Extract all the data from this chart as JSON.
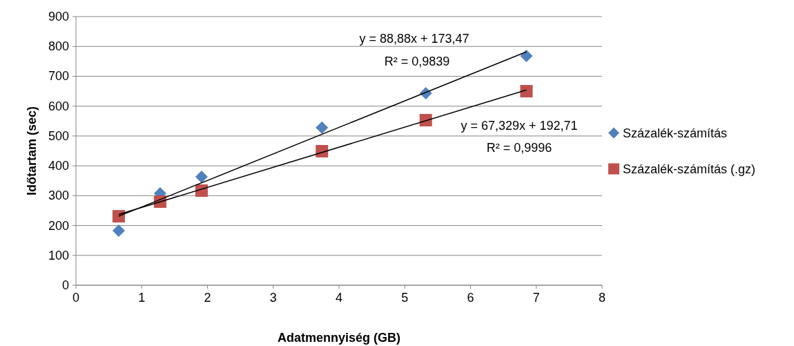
{
  "chart_data": {
    "type": "scatter",
    "xlabel": "Adatmennyiség (GB)",
    "ylabel": "Időtartam (sec)",
    "xlim": [
      0,
      8
    ],
    "xticks": [
      0,
      1,
      2,
      3,
      4,
      5,
      6,
      7,
      8
    ],
    "ylim": [
      0,
      900
    ],
    "yticks": [
      0,
      100,
      200,
      300,
      400,
      500,
      600,
      700,
      800,
      900
    ],
    "grid": "y",
    "legend": "right",
    "series": [
      {
        "name": "Százalék-számítás",
        "color": "#4f81bd",
        "marker": "diamond",
        "x": [
          0.65,
          1.28,
          1.91,
          3.74,
          5.32,
          6.85
        ],
        "values": [
          183,
          308,
          363,
          528,
          643,
          768
        ]
      },
      {
        "name": "Százalék-számítás (.gz)",
        "color": "#c0504d",
        "marker": "square",
        "x": [
          0.65,
          1.28,
          1.91,
          3.74,
          5.32,
          6.85
        ],
        "values": [
          231,
          280,
          317,
          449,
          553,
          650
        ]
      },
      {
        "type": "line",
        "color": "#000000",
        "x": [
          0.65,
          6.85
        ],
        "values": [
          231,
          782
        ]
      },
      {
        "type": "line",
        "color": "#000000",
        "x": [
          0.65,
          6.85
        ],
        "values": [
          237,
          654
        ]
      }
    ],
    "annotations": [
      "y = 88,88x + 173,47",
      "R² = 0,9839",
      "y = 67,329x + 192,71",
      "R² = 0,9996"
    ]
  }
}
